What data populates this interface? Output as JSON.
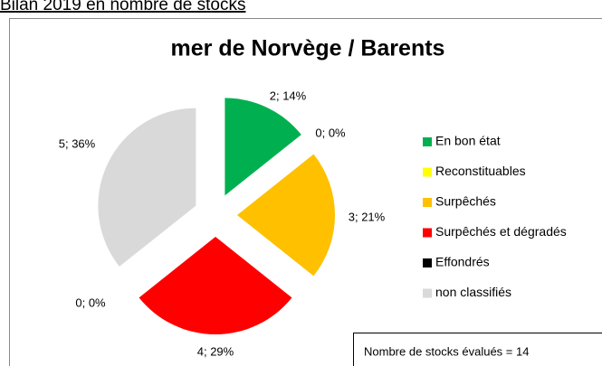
{
  "header": "Bilan 2019 en nombre de stocks",
  "chart_data": {
    "type": "pie",
    "title": "mer de Norvège / Barents",
    "categories": [
      "En bon état",
      "Reconstituables",
      "Surpêchés",
      "Surpêchés et dégradés",
      "Effondrés",
      "non classifiés"
    ],
    "values": [
      2,
      0,
      3,
      4,
      0,
      5
    ],
    "value_labels": [
      "2; 14%",
      "0; 0%",
      "3; 21%",
      "4; 29%",
      "0; 0%",
      "5; 36%"
    ],
    "colors": [
      "#00b050",
      "#ffff00",
      "#ffc000",
      "#ff0000",
      "#000000",
      "#d9d9d9"
    ],
    "legend": "right",
    "note": "Nombre de stocks évalués = 14"
  }
}
